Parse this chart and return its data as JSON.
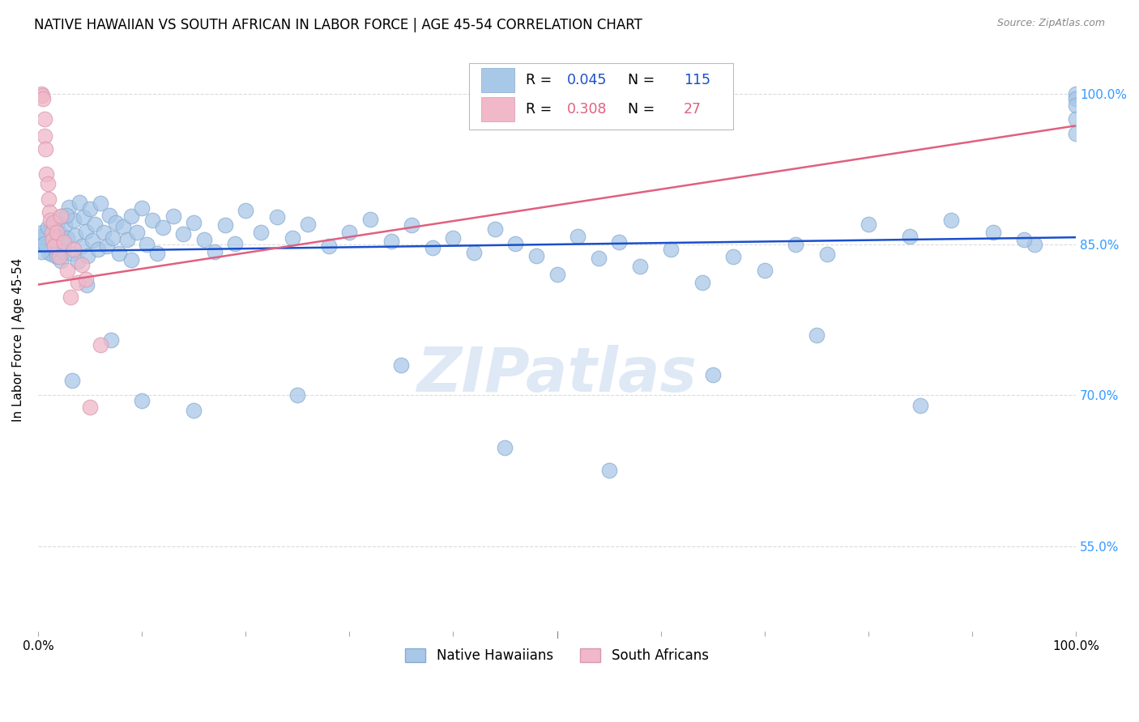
{
  "title": "NATIVE HAWAIIAN VS SOUTH AFRICAN IN LABOR FORCE | AGE 45-54 CORRELATION CHART",
  "source": "Source: ZipAtlas.com",
  "ylabel": "In Labor Force | Age 45-54",
  "xlim": [
    0,
    1
  ],
  "ylim": [
    0.465,
    1.045
  ],
  "yticks": [
    0.55,
    0.7,
    0.85,
    1.0
  ],
  "ytick_labels": [
    "55.0%",
    "70.0%",
    "85.0%",
    "100.0%"
  ],
  "blue_R": 0.045,
  "blue_N": 115,
  "pink_R": 0.308,
  "pink_N": 27,
  "blue_color": "#a8c8e8",
  "blue_edge_color": "#88aad0",
  "blue_line_color": "#1a4fcc",
  "pink_color": "#f0b8c8",
  "pink_edge_color": "#d898b0",
  "pink_line_color": "#e06080",
  "legend_blue_label": "Native Hawaiians",
  "legend_pink_label": "South Africans",
  "watermark": "ZIPatlas",
  "background_color": "#ffffff",
  "grid_color": "#cccccc",
  "title_fontsize": 12,
  "axis_label_fontsize": 11,
  "tick_fontsize": 11,
  "right_tick_color": "#3399ff",
  "blue_trend_x0": 0.0,
  "blue_trend_x1": 1.0,
  "blue_trend_y0": 0.843,
  "blue_trend_y1": 0.857,
  "pink_trend_x0": 0.0,
  "pink_trend_x1": 1.0,
  "pink_trend_y0": 0.81,
  "pink_trend_y1": 0.968,
  "blue_x": [
    0.005,
    0.007,
    0.008,
    0.01,
    0.011,
    0.012,
    0.013,
    0.014,
    0.015,
    0.016,
    0.017,
    0.018,
    0.019,
    0.02,
    0.021,
    0.022,
    0.023,
    0.024,
    0.025,
    0.026,
    0.028,
    0.03,
    0.032,
    0.034,
    0.036,
    0.038,
    0.04,
    0.042,
    0.044,
    0.046,
    0.048,
    0.05,
    0.052,
    0.055,
    0.058,
    0.06,
    0.063,
    0.066,
    0.069,
    0.072,
    0.075,
    0.078,
    0.082,
    0.086,
    0.09,
    0.095,
    0.1,
    0.105,
    0.11,
    0.115,
    0.12,
    0.13,
    0.14,
    0.15,
    0.16,
    0.17,
    0.18,
    0.19,
    0.2,
    0.215,
    0.23,
    0.245,
    0.26,
    0.28,
    0.3,
    0.32,
    0.34,
    0.36,
    0.38,
    0.4,
    0.42,
    0.44,
    0.46,
    0.48,
    0.5,
    0.52,
    0.54,
    0.56,
    0.58,
    0.61,
    0.64,
    0.67,
    0.7,
    0.73,
    0.76,
    0.8,
    0.84,
    0.88,
    0.92,
    0.96,
    1.0,
    1.0,
    1.0,
    1.0,
    1.0,
    0.002,
    0.003,
    0.004,
    0.006,
    0.009,
    0.027,
    0.033,
    0.047,
    0.07,
    0.1,
    0.15,
    0.25,
    0.35,
    0.45,
    0.55,
    0.65,
    0.75,
    0.85,
    0.95,
    0.09
  ],
  "blue_y": [
    0.85,
    0.86,
    0.848,
    0.842,
    0.855,
    0.865,
    0.84,
    0.852,
    0.868,
    0.845,
    0.858,
    0.838,
    0.872,
    0.846,
    0.861,
    0.834,
    0.878,
    0.851,
    0.843,
    0.869,
    0.856,
    0.887,
    0.841,
    0.874,
    0.859,
    0.833,
    0.892,
    0.848,
    0.877,
    0.863,
    0.839,
    0.885,
    0.854,
    0.87,
    0.845,
    0.891,
    0.862,
    0.848,
    0.879,
    0.856,
    0.872,
    0.841,
    0.868,
    0.855,
    0.878,
    0.862,
    0.886,
    0.85,
    0.874,
    0.841,
    0.867,
    0.878,
    0.86,
    0.872,
    0.855,
    0.843,
    0.869,
    0.851,
    0.884,
    0.862,
    0.877,
    0.856,
    0.87,
    0.848,
    0.862,
    0.875,
    0.853,
    0.869,
    0.847,
    0.856,
    0.842,
    0.865,
    0.851,
    0.839,
    0.82,
    0.858,
    0.836,
    0.852,
    0.828,
    0.845,
    0.812,
    0.838,
    0.824,
    0.85,
    0.84,
    0.87,
    0.858,
    0.874,
    0.862,
    0.85,
    1.0,
    0.995,
    0.988,
    0.975,
    0.96,
    0.858,
    0.843,
    0.862,
    0.851,
    0.867,
    0.879,
    0.715,
    0.81,
    0.755,
    0.695,
    0.685,
    0.7,
    0.73,
    0.648,
    0.625,
    0.72,
    0.76,
    0.69,
    0.855,
    0.835
  ],
  "pink_x": [
    0.003,
    0.004,
    0.005,
    0.006,
    0.006,
    0.007,
    0.008,
    0.009,
    0.01,
    0.011,
    0.012,
    0.013,
    0.014,
    0.015,
    0.016,
    0.018,
    0.02,
    0.022,
    0.025,
    0.028,
    0.031,
    0.034,
    0.038,
    0.042,
    0.046,
    0.05,
    0.06
  ],
  "pink_y": [
    1.0,
    0.998,
    0.995,
    0.975,
    0.958,
    0.945,
    0.92,
    0.91,
    0.895,
    0.882,
    0.874,
    0.861,
    0.855,
    0.872,
    0.848,
    0.862,
    0.838,
    0.878,
    0.852,
    0.824,
    0.798,
    0.845,
    0.812,
    0.83,
    0.815,
    0.688,
    0.75
  ]
}
